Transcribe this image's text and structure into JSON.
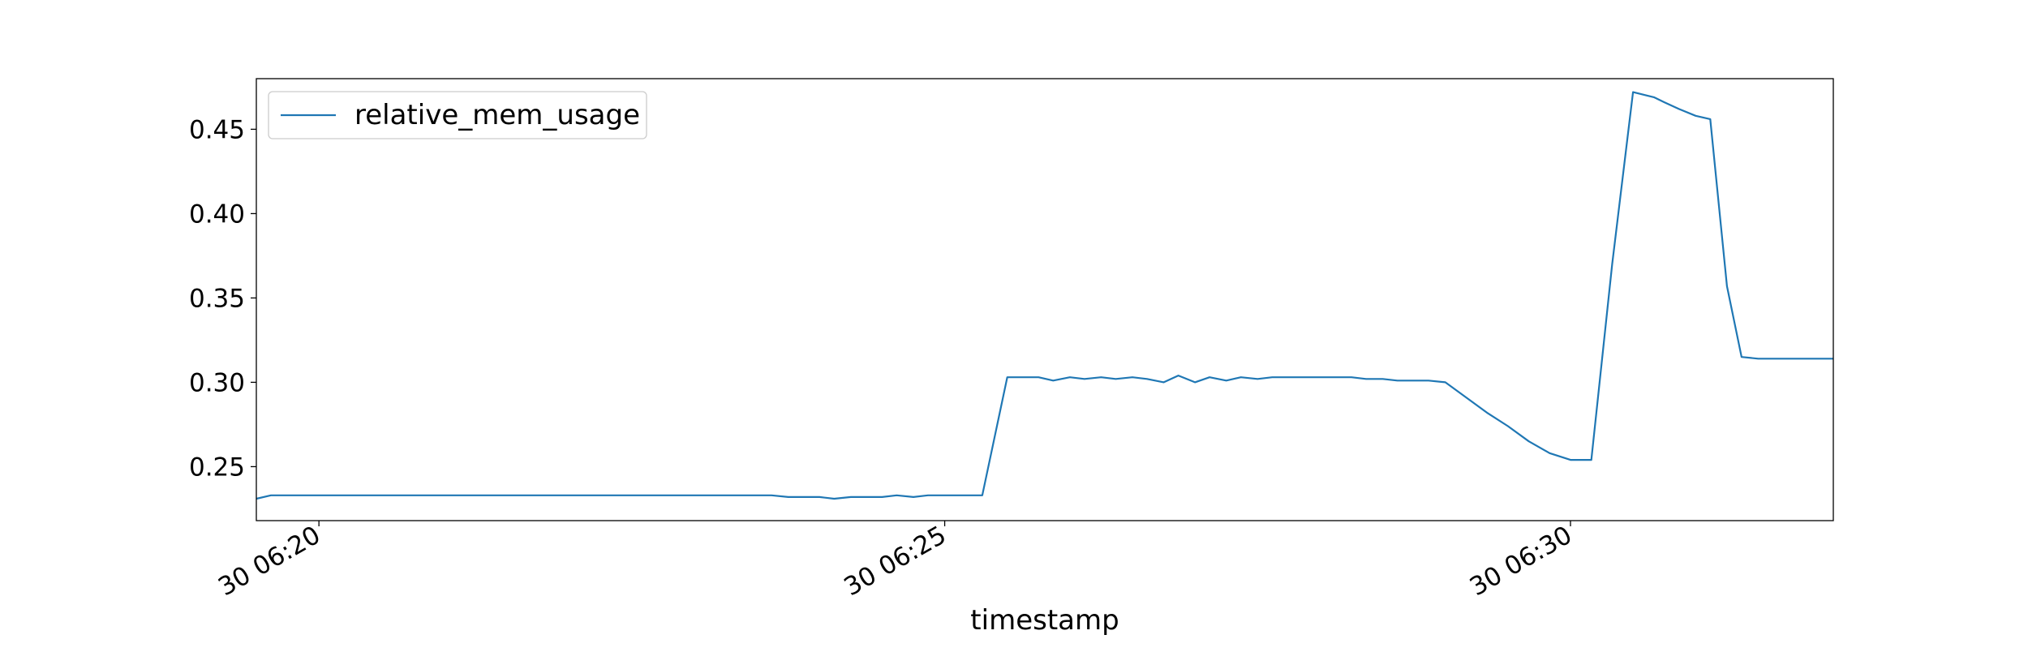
{
  "chart_data": {
    "type": "line",
    "title": "",
    "xlabel": "timestamp",
    "ylabel": "",
    "x_ticks": [
      "30 06:20",
      "30 06:25",
      "30 06:30"
    ],
    "y_ticks": [
      "0.25",
      "0.30",
      "0.35",
      "0.40",
      "0.45"
    ],
    "ylim": [
      0.218,
      0.48
    ],
    "xlim": [
      "06:19:30",
      "06:32:06"
    ],
    "grid": false,
    "legend_position": "top-left",
    "series": [
      {
        "name": "relative_mem_usage",
        "color": "#1f77b4",
        "x": [
          "06:19:30",
          "06:19:37",
          "06:19:45",
          "06:19:52",
          "06:20:00",
          "06:20:07",
          "06:20:15",
          "06:20:22",
          "06:20:30",
          "06:20:37",
          "06:20:45",
          "06:20:52",
          "06:21:00",
          "06:21:07",
          "06:21:15",
          "06:21:22",
          "06:21:30",
          "06:21:37",
          "06:21:45",
          "06:21:52",
          "06:22:00",
          "06:22:07",
          "06:22:15",
          "06:22:22",
          "06:22:30",
          "06:22:37",
          "06:22:45",
          "06:22:52",
          "06:23:00",
          "06:23:07",
          "06:23:15",
          "06:23:22",
          "06:23:30",
          "06:23:37",
          "06:23:45",
          "06:23:52",
          "06:24:00",
          "06:24:07",
          "06:24:15",
          "06:24:22",
          "06:24:30",
          "06:24:37",
          "06:24:45",
          "06:24:52",
          "06:25:00",
          "06:25:10",
          "06:25:18",
          "06:25:30",
          "06:25:37",
          "06:25:45",
          "06:25:52",
          "06:26:00",
          "06:26:07",
          "06:26:15",
          "06:26:22",
          "06:26:30",
          "06:26:37",
          "06:26:45",
          "06:26:52",
          "06:27:00",
          "06:27:07",
          "06:27:15",
          "06:27:22",
          "06:27:30",
          "06:27:37",
          "06:27:45",
          "06:27:52",
          "06:28:00",
          "06:28:07",
          "06:28:15",
          "06:28:22",
          "06:28:30",
          "06:28:37",
          "06:28:45",
          "06:28:52",
          "06:29:00",
          "06:29:10",
          "06:29:20",
          "06:29:30",
          "06:29:40",
          "06:29:50",
          "06:30:00",
          "06:30:10",
          "06:30:20",
          "06:30:30",
          "06:30:40",
          "06:30:45",
          "06:30:52",
          "06:31:00",
          "06:31:07",
          "06:31:15",
          "06:31:22",
          "06:31:30",
          "06:31:37",
          "06:31:45",
          "06:31:52",
          "06:32:00",
          "06:32:06"
        ],
        "y": [
          0.231,
          0.233,
          0.233,
          0.233,
          0.233,
          0.233,
          0.233,
          0.233,
          0.233,
          0.233,
          0.233,
          0.233,
          0.233,
          0.233,
          0.233,
          0.233,
          0.233,
          0.233,
          0.233,
          0.233,
          0.233,
          0.233,
          0.233,
          0.233,
          0.233,
          0.233,
          0.233,
          0.233,
          0.233,
          0.233,
          0.233,
          0.233,
          0.233,
          0.233,
          0.232,
          0.232,
          0.232,
          0.231,
          0.232,
          0.232,
          0.232,
          0.233,
          0.232,
          0.233,
          0.233,
          0.233,
          0.233,
          0.303,
          0.303,
          0.303,
          0.301,
          0.303,
          0.302,
          0.303,
          0.302,
          0.303,
          0.302,
          0.3,
          0.304,
          0.3,
          0.303,
          0.301,
          0.303,
          0.302,
          0.303,
          0.303,
          0.303,
          0.303,
          0.303,
          0.303,
          0.302,
          0.302,
          0.301,
          0.301,
          0.301,
          0.3,
          0.291,
          0.282,
          0.274,
          0.265,
          0.258,
          0.254,
          0.254,
          0.37,
          0.472,
          0.469,
          0.466,
          0.462,
          0.458,
          0.456,
          0.357,
          0.315,
          0.314,
          0.314,
          0.314,
          0.314,
          0.314,
          0.314
        ]
      }
    ]
  }
}
